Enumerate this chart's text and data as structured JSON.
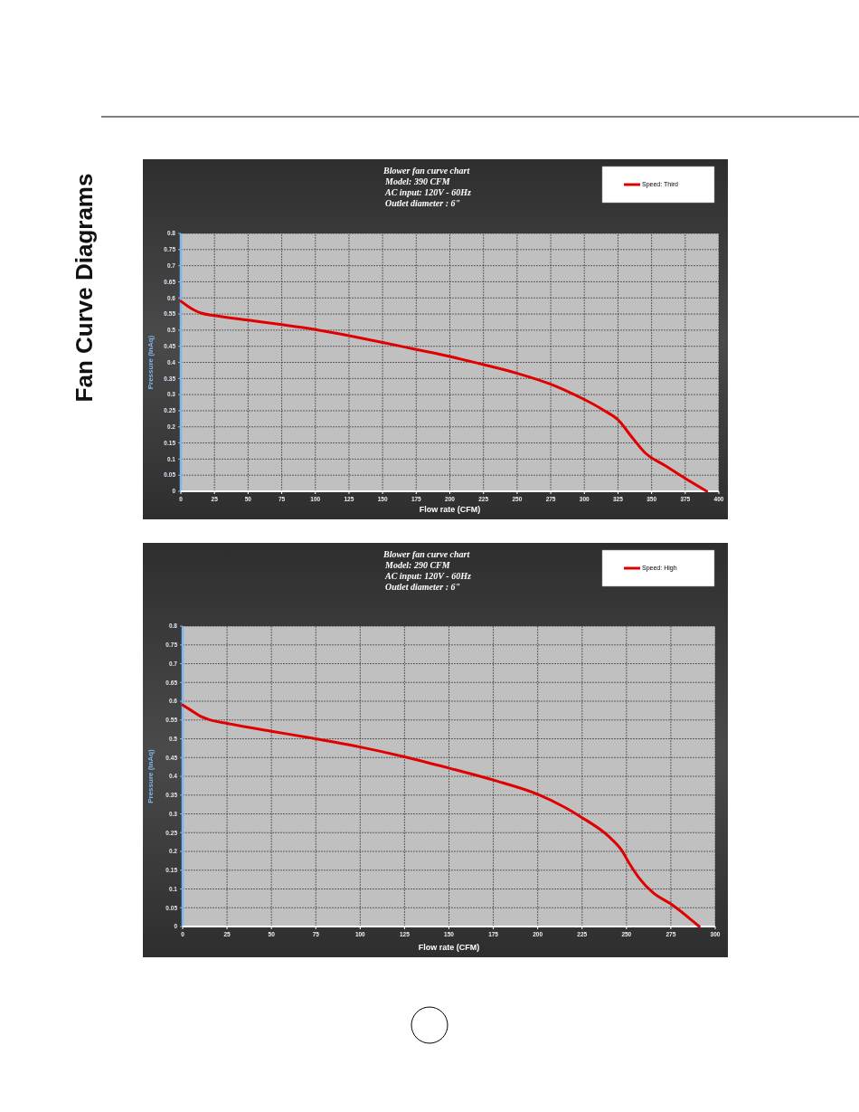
{
  "chart_data": [
    {
      "type": "line",
      "title": "Blower fan curve chart",
      "subtitle": "Model: 390 CFM\nAC input: 120V - 60Hz\nOutlet diameter : 6\"",
      "xlabel": "Flow rate (CFM)",
      "ylabel": "Pressure (inAq)",
      "annotations": [
        "Fan Curve Diagrams"
      ],
      "x": [
        0,
        5,
        10,
        15,
        25,
        50,
        75,
        100,
        125,
        150,
        175,
        200,
        225,
        250,
        275,
        290,
        300,
        315,
        325,
        335,
        345,
        360,
        375,
        391
      ],
      "series": [
        {
          "name": "Speed: Third",
          "color": "#e00000",
          "values": [
            0.59,
            0.575,
            0.562,
            0.553,
            0.545,
            0.531,
            0.517,
            0.502,
            0.483,
            0.462,
            0.44,
            0.418,
            0.393,
            0.366,
            0.332,
            0.305,
            0.285,
            0.25,
            0.222,
            0.17,
            0.12,
            0.08,
            0.04,
            0
          ]
        }
      ],
      "xlim": [
        0,
        400
      ],
      "xticks": [
        0,
        25,
        50,
        75,
        100,
        125,
        150,
        175,
        200,
        225,
        250,
        275,
        300,
        325,
        350,
        375,
        400
      ],
      "ylim": [
        0,
        0.8
      ],
      "yticks": [
        0,
        0.05,
        0.1,
        0.15,
        0.2,
        0.25,
        0.3,
        0.35,
        0.4,
        0.45,
        0.5,
        0.55,
        0.6,
        0.65,
        0.7,
        0.75,
        0.8
      ],
      "grid": true,
      "legend": "top right",
      "marker": "none",
      "line_style": "solid"
    },
    {
      "type": "line",
      "title": "Blower fan curve chart",
      "subtitle": "Model: 290 CFM\nAC input: 120V - 60Hz\nOutlet diameter : 6\"",
      "xlabel": "Flow rate (CFM)",
      "ylabel": "Pressure (inAq)",
      "x": [
        0,
        5,
        10,
        15,
        25,
        50,
        75,
        100,
        125,
        150,
        175,
        200,
        215,
        225,
        240,
        247,
        252,
        257,
        265,
        275,
        291
      ],
      "series": [
        {
          "name": "Speed: High",
          "color": "#e00000",
          "values": [
            0.59,
            0.575,
            0.56,
            0.551,
            0.541,
            0.52,
            0.5,
            0.478,
            0.452,
            0.422,
            0.39,
            0.352,
            0.318,
            0.29,
            0.24,
            0.205,
            0.165,
            0.13,
            0.09,
            0.06,
            0
          ]
        }
      ],
      "xlim": [
        0,
        300
      ],
      "xticks": [
        0,
        25,
        50,
        75,
        100,
        125,
        150,
        175,
        200,
        225,
        250,
        275,
        300
      ],
      "ylim": [
        0,
        0.8
      ],
      "yticks": [
        0,
        0.05,
        0.1,
        0.15,
        0.2,
        0.25,
        0.3,
        0.35,
        0.4,
        0.45,
        0.5,
        0.55,
        0.6,
        0.65,
        0.7,
        0.75,
        0.8
      ],
      "grid": true,
      "legend": "top right",
      "marker": "none",
      "line_style": "solid"
    }
  ]
}
